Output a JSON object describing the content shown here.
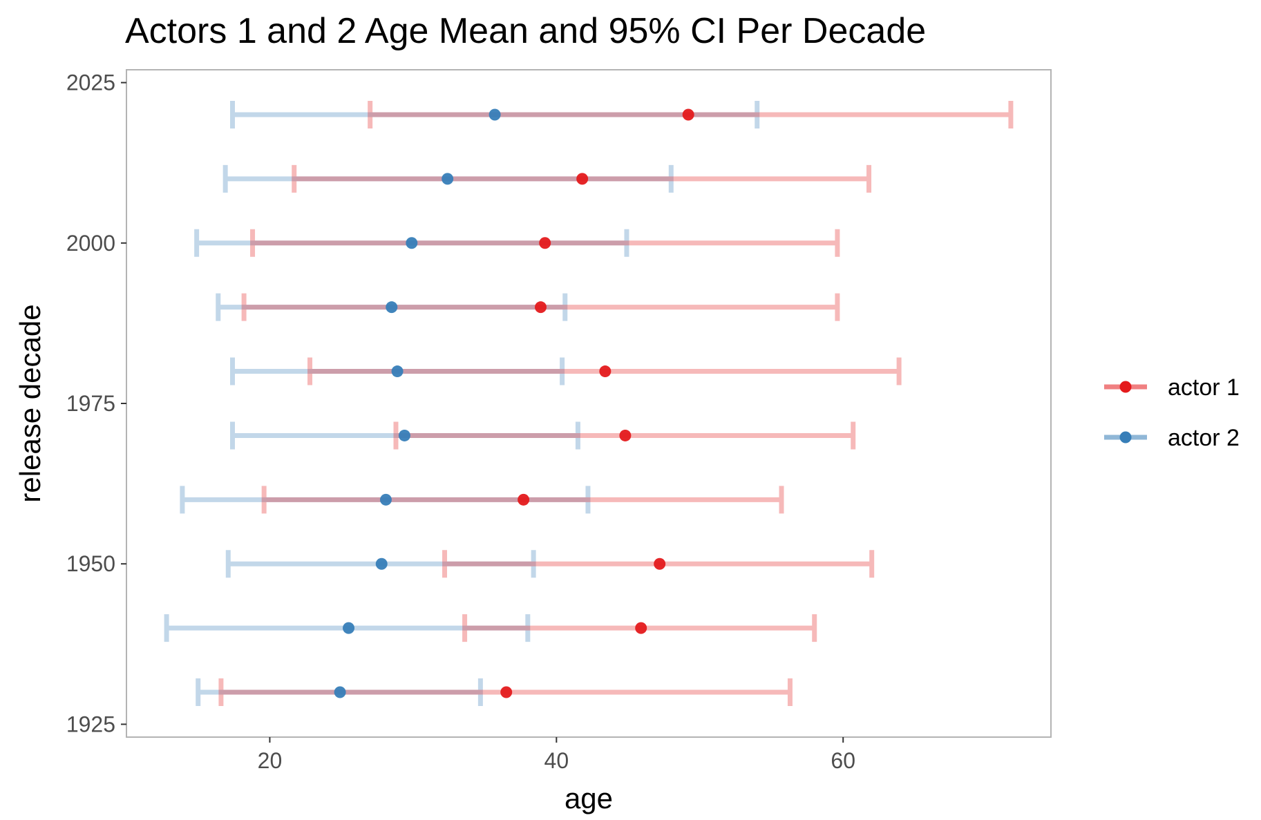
{
  "chart_data": {
    "type": "errorbar",
    "title": "Actors 1 and 2 Age Mean and 95% CI Per Decade",
    "xlabel": "age",
    "ylabel": "release decade",
    "xlim": [
      10,
      74.5
    ],
    "ylim": [
      1923,
      2027
    ],
    "x_ticks": [
      20,
      40,
      60
    ],
    "y_ticks": [
      1925,
      1950,
      1975,
      2000,
      2025
    ],
    "grid": false,
    "legend_position": "right",
    "series": [
      {
        "name": "actor 1",
        "color": "#e41a1c",
        "points": [
          {
            "decade": 1930,
            "mean": 36.5,
            "low": 16.6,
            "high": 56.3
          },
          {
            "decade": 1940,
            "mean": 45.9,
            "low": 33.6,
            "high": 58.0
          },
          {
            "decade": 1950,
            "mean": 47.2,
            "low": 32.2,
            "high": 62.0
          },
          {
            "decade": 1960,
            "mean": 37.7,
            "low": 19.6,
            "high": 55.7
          },
          {
            "decade": 1970,
            "mean": 44.8,
            "low": 28.8,
            "high": 60.7
          },
          {
            "decade": 1980,
            "mean": 43.4,
            "low": 22.8,
            "high": 63.9
          },
          {
            "decade": 1990,
            "mean": 38.9,
            "low": 18.2,
            "high": 59.6
          },
          {
            "decade": 2000,
            "mean": 39.2,
            "low": 18.8,
            "high": 59.6
          },
          {
            "decade": 2010,
            "mean": 41.8,
            "low": 21.7,
            "high": 61.8
          },
          {
            "decade": 2020,
            "mean": 49.2,
            "low": 27.0,
            "high": 71.7
          }
        ]
      },
      {
        "name": "actor 2",
        "color": "#377eb8",
        "points": [
          {
            "decade": 1930,
            "mean": 24.9,
            "low": 15.0,
            "high": 34.7
          },
          {
            "decade": 1940,
            "mean": 25.5,
            "low": 12.8,
            "high": 38.0
          },
          {
            "decade": 1950,
            "mean": 27.8,
            "low": 17.1,
            "high": 38.4
          },
          {
            "decade": 1960,
            "mean": 28.1,
            "low": 13.9,
            "high": 42.2
          },
          {
            "decade": 1970,
            "mean": 29.4,
            "low": 17.4,
            "high": 41.5
          },
          {
            "decade": 1980,
            "mean": 28.9,
            "low": 17.4,
            "high": 40.4
          },
          {
            "decade": 1990,
            "mean": 28.5,
            "low": 16.4,
            "high": 40.6
          },
          {
            "decade": 2000,
            "mean": 29.9,
            "low": 14.9,
            "high": 44.9
          },
          {
            "decade": 2010,
            "mean": 32.4,
            "low": 16.9,
            "high": 48.0
          },
          {
            "decade": 2020,
            "mean": 35.7,
            "low": 17.4,
            "high": 54.0
          }
        ]
      }
    ]
  }
}
